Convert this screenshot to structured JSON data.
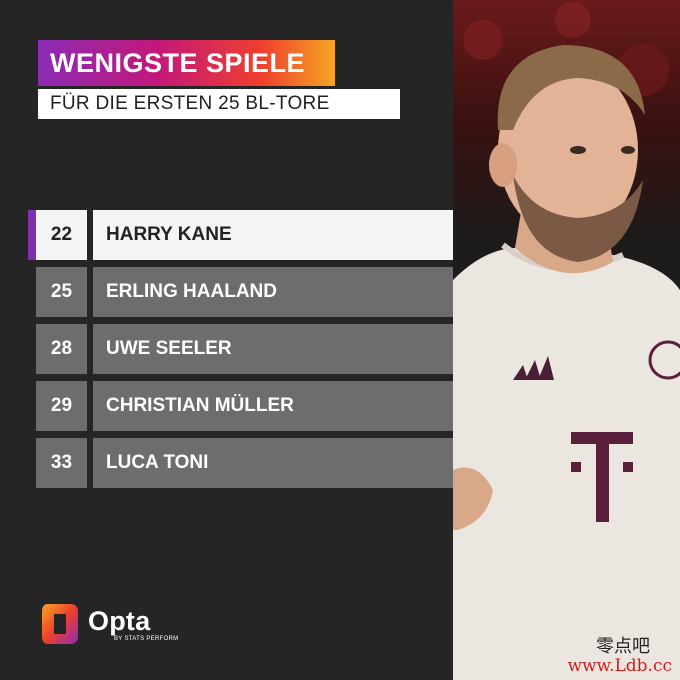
{
  "header": {
    "title": "WENIGSTE SPIELE",
    "subtitle": "FÜR DIE ERSTEN 25 BL-TORE"
  },
  "ranking": [
    {
      "games": "22",
      "player": "HARRY KANE",
      "highlighted": true
    },
    {
      "games": "25",
      "player": "ERLING HAALAND",
      "highlighted": false
    },
    {
      "games": "28",
      "player": "UWE SEELER",
      "highlighted": false
    },
    {
      "games": "29",
      "player": "CHRISTIAN MÜLLER",
      "highlighted": false
    },
    {
      "games": "33",
      "player": "LUCA TONI",
      "highlighted": false
    }
  ],
  "branding": {
    "logo_text": "Opta",
    "logo_subtext": "BY STATS PERFORM"
  },
  "watermark": {
    "chinese": "零点吧",
    "url": "www.Ldb.cc"
  },
  "colors": {
    "background": "#252525",
    "row": "#6d6d6d",
    "highlight_row": "#f4f4f4",
    "accent_purple": "#7d2fb0",
    "title_gradient": [
      "#8b2bb5",
      "#c3187a",
      "#ee3f2e",
      "#f6a623"
    ]
  },
  "icons": [
    "opta-logo-icon",
    "player-photo"
  ]
}
